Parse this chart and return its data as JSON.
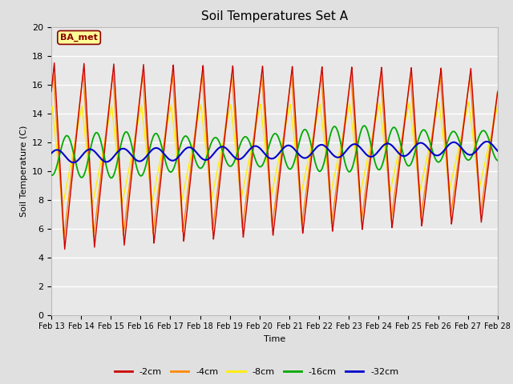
{
  "title": "Soil Temperatures Set A",
  "xlabel": "Time",
  "ylabel": "Soil Temperature (C)",
  "ylim": [
    0,
    20
  ],
  "background_color": "#e0e0e0",
  "plot_bg_color": "#e8e8e8",
  "annotation_text": "BA_met",
  "annotation_bg": "#ffff99",
  "annotation_border": "#8b0000",
  "series_colors": {
    "-2cm": "#cc0000",
    "-4cm": "#ff8800",
    "-8cm": "#ffee00",
    "-16cm": "#00aa00",
    "-32cm": "#0000cc"
  },
  "legend_labels": [
    "-2cm",
    "-4cm",
    "-8cm",
    "-16cm",
    "-32cm"
  ],
  "n_days": 15,
  "start_day": 13
}
